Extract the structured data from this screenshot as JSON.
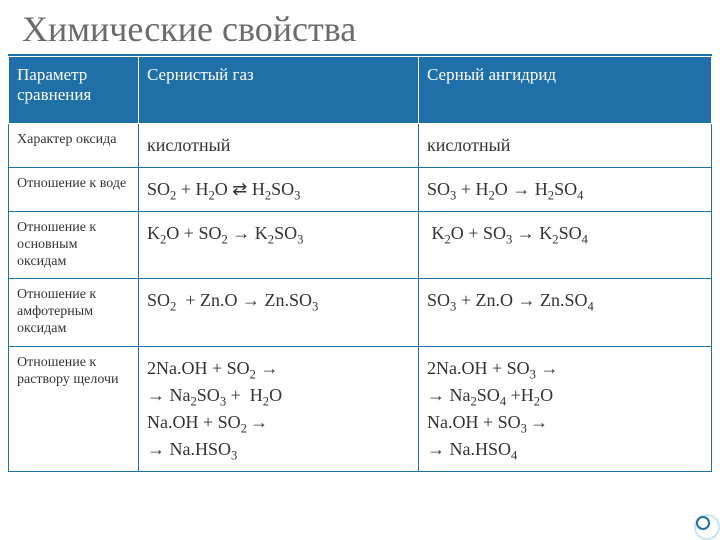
{
  "title": "Химические свойства",
  "columns": {
    "param": "Параметр сравнения",
    "so2": "Сернистый газ",
    "so3": "Серный  ангидрид"
  },
  "rows": {
    "r1": {
      "param": "Характер оксида",
      "so2": "кислотный",
      "so3": "кислотный"
    },
    "r2": {
      "param": "Отношение к воде"
    },
    "r3": {
      "param": "Отношение к основным оксидам"
    },
    "r4": {
      "param": "Отношение к амфотерным оксидам"
    },
    "r5": {
      "param": "Отношение к раствору щелочи"
    }
  },
  "formulas": {
    "r2_so2": "SO<sub>2</sub> + H<sub>2</sub>O ⇄ H<sub>2</sub>SO<sub>3</sub>",
    "r2_so3": "SO<sub>3</sub> + H<sub>2</sub>O → H<sub>2</sub>SO<sub>4</sub>",
    "r3_so2": "K<sub>2</sub>O + SO<sub>2</sub> → K<sub>2</sub>SO<sub>3</sub>",
    "r3_so3": "&nbsp;K<sub>2</sub>O + SO<sub>3</sub> → K<sub>2</sub>SO<sub>4</sub>",
    "r4_so2": "SO<sub>2</sub>&nbsp; + Zn.O → Zn.SO<sub>3</sub>",
    "r4_so3": "SO<sub>3</sub> + Zn.O → Zn.SO<sub>4</sub>",
    "r5_so2": "2Na.OH + SO<sub>2</sub> →<br>→ Na<sub>2</sub>SO<sub>3</sub> + &nbsp;H<sub>2</sub>O<br>Na.OH + SO<sub>2 </sub>→<br>→ Na.HSO<sub>3</sub>",
    "r5_so3": "2Na.OH + SO<sub>3</sub> →<br>→ Na<sub>2</sub>SO<sub>4</sub> +H<sub>2</sub>O<br>Na.OH + SO<sub>3 </sub>→<br>→ Na.HSO<sub>4</sub>"
  },
  "colors": {
    "header_bg": "#1f6fa8",
    "header_text": "#ffffff",
    "border": "#1f6fa8",
    "title_color": "#6b6b6b"
  }
}
